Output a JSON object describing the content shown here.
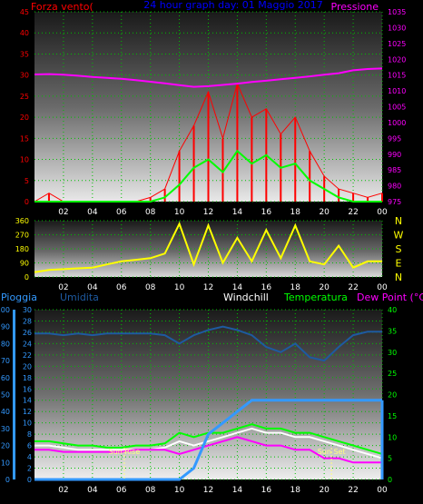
{
  "page": {
    "title": "24 hour graph day: 01 Maggio 2017"
  },
  "x_ticks": [
    "02",
    "04",
    "06",
    "08",
    "10",
    "12",
    "14",
    "16",
    "18",
    "20",
    "22",
    "00"
  ],
  "colors": {
    "wind": "#ff0000",
    "gust": "#00ff00",
    "pressure": "#ff00ff",
    "direction": "#ffff00",
    "rain": "#3399ff",
    "humidity": "#1e5aa0",
    "temperature": "#00ff00",
    "dewpoint": "#ff00ff",
    "windchill": "#ffffff",
    "grid": "#00c000"
  },
  "chart_data": [
    {
      "type": "line",
      "name": "wind-pressure",
      "labels": {
        "left": "Forza vento(",
        "right": "Pressione"
      },
      "y_left": {
        "min": 0,
        "max": 45,
        "ticks": [
          0,
          5,
          10,
          15,
          20,
          25,
          30,
          35,
          40,
          45
        ]
      },
      "y_right": {
        "min": 975,
        "max": 1035,
        "ticks": [
          975,
          980,
          985,
          990,
          995,
          1000,
          1005,
          1010,
          1015,
          1020,
          1025,
          1030,
          1035
        ]
      },
      "x": [
        0,
        1,
        2,
        3,
        4,
        5,
        6,
        7,
        8,
        9,
        10,
        11,
        12,
        13,
        14,
        15,
        16,
        17,
        18,
        19,
        20,
        21,
        22,
        23,
        24
      ],
      "series": [
        {
          "key": "pressure",
          "axis": "right",
          "values": [
            1015.2,
            1015.3,
            1015.1,
            1014.8,
            1014.4,
            1014.1,
            1013.8,
            1013.4,
            1012.9,
            1012.4,
            1011.8,
            1011.3,
            1011.5,
            1011.9,
            1012.3,
            1012.8,
            1013.2,
            1013.7,
            1014.1,
            1014.6,
            1015.1,
            1015.6,
            1016.5,
            1016.9,
            1017.1
          ]
        },
        {
          "key": "wind",
          "axis": "left",
          "values": [
            0,
            2,
            0,
            0,
            0,
            0,
            0,
            0,
            1,
            3,
            12,
            18,
            26,
            15,
            28,
            20,
            22,
            16,
            20,
            12,
            6,
            3,
            2,
            1,
            2
          ]
        },
        {
          "key": "gust",
          "axis": "left",
          "values": [
            0,
            0,
            0,
            0,
            0,
            0,
            0,
            0,
            0,
            1,
            4,
            8,
            10,
            7,
            12,
            9,
            11,
            8,
            9,
            5,
            3,
            1,
            0,
            0,
            0
          ]
        }
      ]
    },
    {
      "type": "line",
      "name": "wind-direction",
      "y_left": {
        "min": 0,
        "max": 360,
        "ticks": [
          0,
          90,
          180,
          270,
          360
        ]
      },
      "compass": [
        "N",
        "W",
        "S",
        "E",
        "N"
      ],
      "x": [
        0,
        1,
        2,
        3,
        4,
        5,
        6,
        7,
        8,
        9,
        10,
        11,
        12,
        13,
        14,
        15,
        16,
        17,
        18,
        19,
        20,
        21,
        22,
        23,
        24
      ],
      "series": [
        {
          "key": "direction",
          "values": [
            30,
            45,
            50,
            55,
            60,
            80,
            100,
            110,
            120,
            150,
            340,
            80,
            330,
            90,
            250,
            100,
            300,
            120,
            330,
            100,
            80,
            200,
            60,
            100,
            100
          ]
        }
      ]
    },
    {
      "type": "line",
      "name": "rain-temp",
      "labels": {
        "rain": "Pioggia",
        "humidity": "Umidita",
        "windchill": "Windchill",
        "temperature": "Temperatura",
        "dewpoint": "Dew Point (°C)"
      },
      "y_rain": {
        "min": 0,
        "max": 30,
        "ticks": [
          0,
          2,
          4,
          6,
          8,
          10,
          12,
          14,
          16,
          18,
          20,
          22,
          24,
          26,
          28,
          30
        ]
      },
      "y_humidity": {
        "min": 0,
        "max": 100,
        "ticks": [
          0,
          10,
          20,
          30,
          40,
          50,
          60,
          70,
          80,
          90,
          100
        ]
      },
      "y_temp": {
        "min": 0,
        "max": 40,
        "ticks": [
          0,
          5,
          10,
          15,
          20,
          25,
          30,
          35,
          40
        ]
      },
      "x": [
        0,
        1,
        2,
        3,
        4,
        5,
        6,
        7,
        8,
        9,
        10,
        11,
        12,
        13,
        14,
        15,
        16,
        17,
        18,
        19,
        20,
        21,
        22,
        23,
        24
      ],
      "annotations": [
        {
          "text": "Sun Rise",
          "x": 6.2
        },
        {
          "text": "Sun Set",
          "x": 20.5
        }
      ],
      "series": [
        {
          "key": "humidity",
          "axis": "humidity",
          "values": [
            86,
            86,
            85,
            86,
            85,
            86,
            86,
            86,
            86,
            85,
            80,
            85,
            88,
            90,
            88,
            85,
            78,
            75,
            80,
            72,
            70,
            78,
            85,
            87,
            87
          ]
        },
        {
          "key": "temperature",
          "axis": "temp",
          "values": [
            9,
            9,
            8.5,
            8,
            8,
            7.5,
            7.5,
            8,
            8,
            8.5,
            11,
            10,
            11,
            11,
            12,
            13,
            12,
            12,
            11,
            11,
            10,
            9,
            8,
            7,
            6
          ]
        },
        {
          "key": "windchill",
          "axis": "temp",
          "values": [
            8,
            8,
            7.5,
            7,
            7,
            7,
            7,
            7,
            7,
            7.5,
            9,
            8,
            9,
            10,
            11,
            12,
            11,
            11,
            10,
            10,
            9,
            8,
            7,
            6,
            5
          ]
        },
        {
          "key": "dewpoint",
          "axis": "temp",
          "values": [
            7,
            7,
            6.5,
            6.5,
            6.5,
            6.5,
            6.5,
            7,
            7,
            7,
            6,
            7,
            8,
            9,
            10,
            9,
            8,
            8,
            7,
            7,
            5,
            5,
            4,
            4,
            4
          ]
        },
        {
          "key": "rain",
          "axis": "rain",
          "values": [
            0,
            0,
            0,
            0,
            0,
            0,
            0,
            0,
            0,
            0,
            0,
            2,
            8,
            10,
            12,
            14,
            14,
            14,
            14,
            14,
            14,
            14,
            14,
            14,
            14
          ]
        }
      ]
    }
  ]
}
